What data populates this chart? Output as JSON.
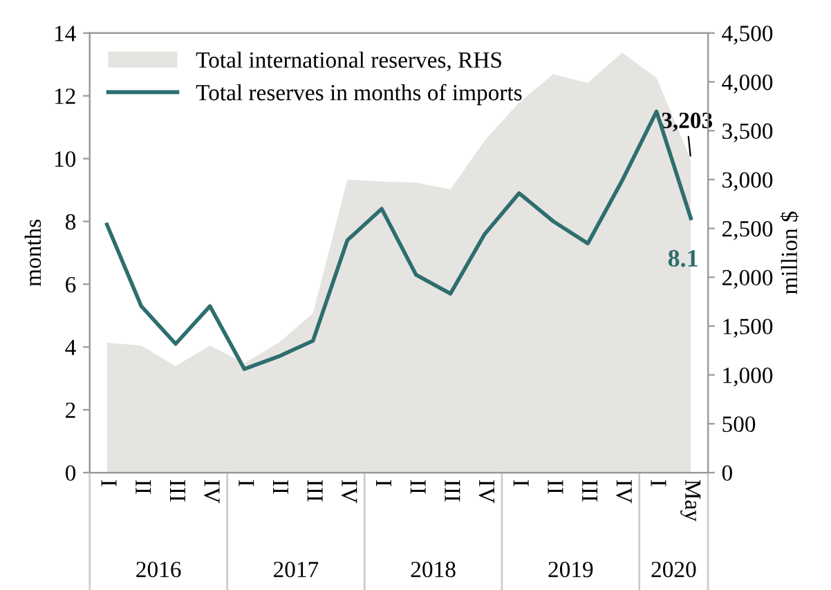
{
  "chart_data": {
    "type": "line",
    "ylabel": "months",
    "y2label": "million $",
    "categories": [
      "I",
      "II",
      "III",
      "IV",
      "I",
      "II",
      "III",
      "IV",
      "I",
      "II",
      "III",
      "IV",
      "I",
      "II",
      "III",
      "IV",
      "I",
      "May"
    ],
    "series": [
      {
        "name": "Total international reserves, RHS",
        "type": "area",
        "axis": "y2",
        "color": "#e6e4e1",
        "values": [
          1330,
          1300,
          1090,
          1300,
          1120,
          1330,
          1630,
          3000,
          2980,
          2970,
          2900,
          3400,
          3790,
          4080,
          3990,
          4300,
          4040,
          3203
        ],
        "value_labels": [
          null,
          null,
          null,
          null,
          null,
          null,
          null,
          null,
          null,
          null,
          null,
          null,
          null,
          null,
          null,
          null,
          null,
          "3,203"
        ]
      },
      {
        "name": "Total reserves in months of imports",
        "color": "#2e6e6e",
        "values": [
          7.9,
          5.3,
          4.1,
          5.3,
          3.3,
          3.7,
          4.2,
          7.4,
          8.4,
          6.3,
          5.7,
          7.6,
          8.9,
          8.0,
          7.3,
          9.3,
          11.5,
          8.1
        ],
        "value_labels": [
          null,
          null,
          null,
          null,
          null,
          null,
          null,
          null,
          null,
          null,
          null,
          null,
          null,
          null,
          null,
          null,
          null,
          "8.1"
        ]
      }
    ],
    "ylim": [
      0,
      14
    ],
    "yticks": [
      0,
      2,
      4,
      6,
      8,
      10,
      12,
      14
    ],
    "y2lim": [
      0,
      4500
    ],
    "y2ticks": [
      0,
      500,
      {
        "value": 1000,
        "label": "1,000"
      },
      {
        "value": 1500,
        "label": "1,500"
      },
      {
        "value": 2000,
        "label": "2,000"
      },
      {
        "value": 2500,
        "label": "2,500"
      },
      {
        "value": 3000,
        "label": "3,000"
      },
      {
        "value": 3500,
        "label": "3,500"
      },
      {
        "value": 4000,
        "label": "4,000"
      },
      {
        "value": 4500,
        "label": "4,500"
      }
    ],
    "annotations": [
      "2016",
      "2017",
      "2018",
      "2019",
      "2020"
    ],
    "grid": false,
    "legend": "top left",
    "marker": "none",
    "line_style": "solid"
  }
}
